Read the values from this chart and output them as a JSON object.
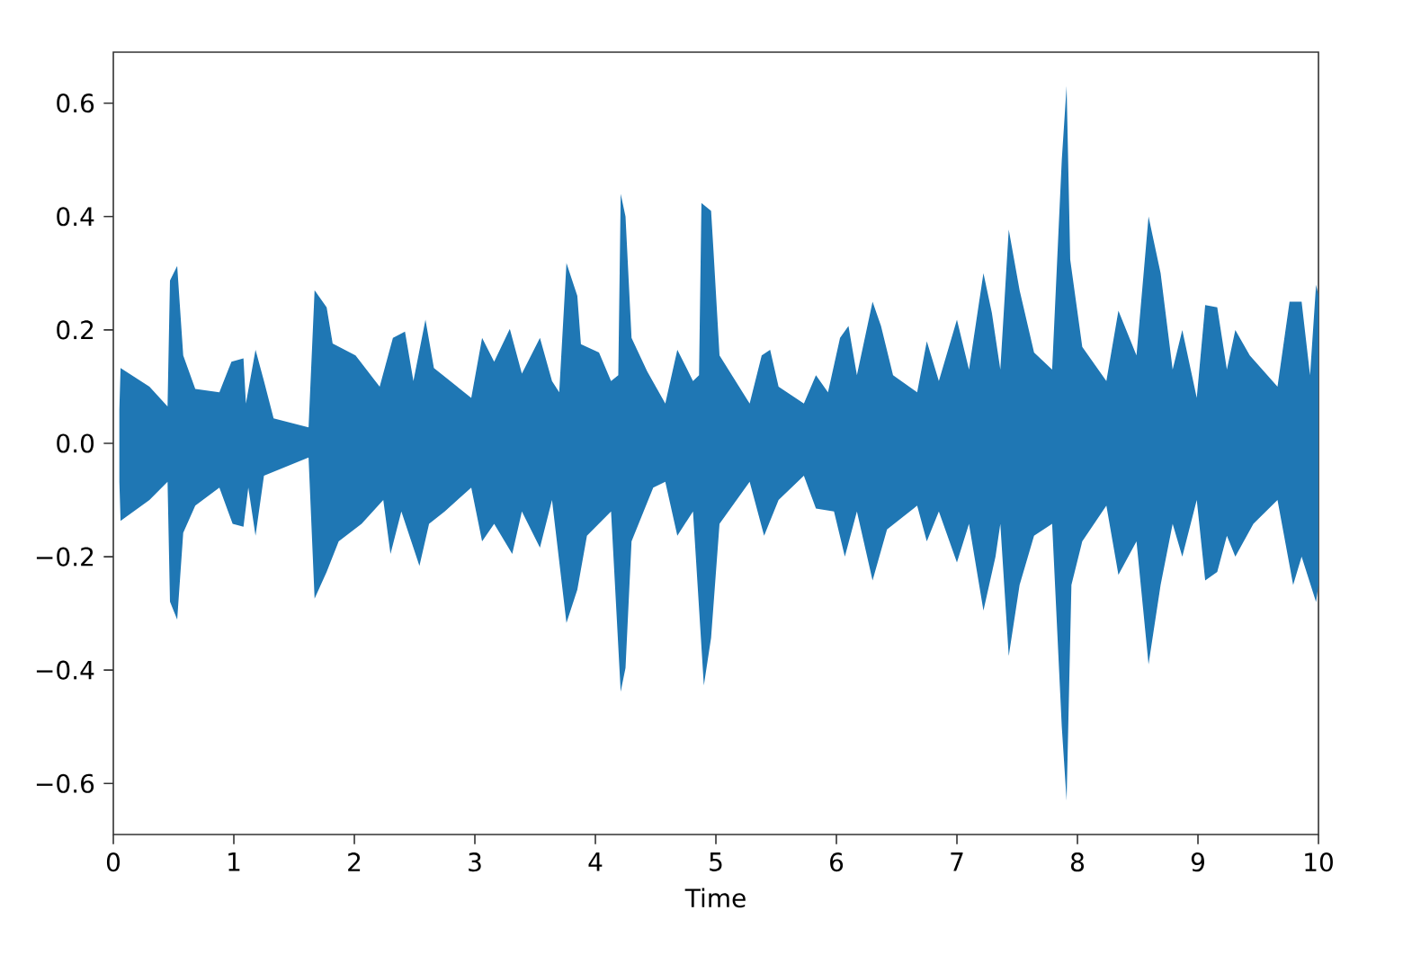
{
  "chart_data": {
    "type": "area",
    "xlabel": "Time",
    "xlim": [
      0,
      10
    ],
    "ylim": [
      -0.69,
      0.69
    ],
    "xticks": [
      0,
      1,
      2,
      3,
      4,
      5,
      6,
      7,
      8,
      9,
      10
    ],
    "yticks": [
      {
        "value": -0.6,
        "label": "−0.6"
      },
      {
        "value": -0.4,
        "label": "−0.4"
      },
      {
        "value": -0.2,
        "label": "−0.2"
      },
      {
        "value": 0,
        "label": "0.0"
      },
      {
        "value": 0.2,
        "label": "0.2"
      },
      {
        "value": 0.4,
        "label": "0.4"
      },
      {
        "value": 0.6,
        "label": "0.6"
      }
    ],
    "series": [
      {
        "color": "#1f77b4",
        "x": [
          0.05,
          0.06,
          0.3,
          0.45,
          0.47,
          0.53,
          0.58,
          0.68,
          0.88,
          0.98,
          1.08,
          1.1,
          1.18,
          1.25,
          1.33,
          1.62,
          1.67,
          1.77,
          1.82,
          2.01,
          2.21,
          2.32,
          2.42,
          2.49,
          2.59,
          2.66,
          2.97,
          3.06,
          3.16,
          3.29,
          3.39,
          3.54,
          3.64,
          3.7,
          3.76,
          3.85,
          3.88,
          4.03,
          4.13,
          4.19,
          4.21,
          4.25,
          4.3,
          4.43,
          4.58,
          4.68,
          4.81,
          4.86,
          4.88,
          4.96,
          4.98,
          5.03,
          5.28,
          5.38,
          5.45,
          5.52,
          5.73,
          5.83,
          5.93,
          6.03,
          6.1,
          6.17,
          6.3,
          6.37,
          6.47,
          6.67,
          6.75,
          6.85,
          7.0,
          7.1,
          7.22,
          7.29,
          7.36,
          7.43,
          7.52,
          7.64,
          7.79,
          7.87,
          7.91,
          7.94,
          8.04,
          8.24,
          8.34,
          8.49,
          8.59,
          8.69,
          8.79,
          8.87,
          8.99,
          9.06,
          9.16,
          9.24,
          9.31,
          9.43,
          9.66,
          9.76,
          9.86,
          9.93,
          9.98,
          10.0
        ],
        "values": [
          0.06,
          0.133,
          0.1,
          0.065,
          0.287,
          0.313,
          0.155,
          0.096,
          0.09,
          0.144,
          0.15,
          0.07,
          0.165,
          0.11,
          0.044,
          0.028,
          0.27,
          0.24,
          0.176,
          0.155,
          0.1,
          0.186,
          0.197,
          0.11,
          0.218,
          0.133,
          0.08,
          0.186,
          0.144,
          0.202,
          0.123,
          0.186,
          0.11,
          0.09,
          0.318,
          0.26,
          0.175,
          0.16,
          0.11,
          0.12,
          0.44,
          0.4,
          0.186,
          0.127,
          0.07,
          0.165,
          0.11,
          0.12,
          0.424,
          0.41,
          0.34,
          0.155,
          0.07,
          0.155,
          0.165,
          0.1,
          0.07,
          0.12,
          0.09,
          0.186,
          0.207,
          0.12,
          0.25,
          0.207,
          0.12,
          0.09,
          0.18,
          0.11,
          0.218,
          0.13,
          0.3,
          0.23,
          0.13,
          0.377,
          0.27,
          0.16,
          0.13,
          0.5,
          0.63,
          0.324,
          0.17,
          0.11,
          0.234,
          0.155,
          0.4,
          0.3,
          0.13,
          0.2,
          0.08,
          0.244,
          0.24,
          0.13,
          0.2,
          0.155,
          0.1,
          0.25,
          0.25,
          0.12,
          0.28,
          0.26
        ]
      },
      {
        "color": "#1f77b4",
        "x": [
          0.05,
          0.06,
          0.3,
          0.45,
          0.47,
          0.53,
          0.58,
          0.68,
          0.88,
          0.99,
          1.08,
          1.12,
          1.18,
          1.25,
          1.62,
          1.67,
          1.77,
          1.87,
          2.06,
          2.24,
          2.3,
          2.39,
          2.54,
          2.62,
          2.75,
          2.97,
          3.06,
          3.16,
          3.31,
          3.39,
          3.54,
          3.64,
          3.76,
          3.85,
          3.93,
          4.13,
          4.21,
          4.25,
          4.3,
          4.48,
          4.58,
          4.68,
          4.81,
          4.9,
          4.96,
          5.03,
          5.28,
          5.4,
          5.52,
          5.73,
          5.83,
          5.98,
          6.07,
          6.17,
          6.3,
          6.42,
          6.67,
          6.75,
          6.85,
          7.0,
          7.1,
          7.22,
          7.32,
          7.36,
          7.43,
          7.52,
          7.64,
          7.79,
          7.87,
          7.91,
          7.95,
          8.04,
          8.24,
          8.34,
          8.49,
          8.59,
          8.69,
          8.79,
          8.87,
          8.99,
          9.06,
          9.16,
          9.24,
          9.31,
          9.46,
          9.66,
          9.79,
          9.86,
          9.98,
          10.0
        ],
        "values": [
          -0.068,
          -0.137,
          -0.1,
          -0.068,
          -0.279,
          -0.311,
          -0.158,
          -0.11,
          -0.078,
          -0.142,
          -0.147,
          -0.078,
          -0.163,
          -0.057,
          -0.025,
          -0.274,
          -0.227,
          -0.173,
          -0.142,
          -0.1,
          -0.195,
          -0.12,
          -0.216,
          -0.142,
          -0.12,
          -0.078,
          -0.173,
          -0.142,
          -0.195,
          -0.12,
          -0.184,
          -0.1,
          -0.317,
          -0.258,
          -0.163,
          -0.12,
          -0.438,
          -0.396,
          -0.173,
          -0.078,
          -0.068,
          -0.163,
          -0.12,
          -0.427,
          -0.343,
          -0.142,
          -0.068,
          -0.163,
          -0.1,
          -0.057,
          -0.115,
          -0.12,
          -0.2,
          -0.12,
          -0.242,
          -0.152,
          -0.11,
          -0.173,
          -0.12,
          -0.21,
          -0.142,
          -0.295,
          -0.2,
          -0.142,
          -0.375,
          -0.25,
          -0.163,
          -0.142,
          -0.5,
          -0.63,
          -0.25,
          -0.173,
          -0.11,
          -0.232,
          -0.173,
          -0.39,
          -0.25,
          -0.142,
          -0.2,
          -0.1,
          -0.242,
          -0.227,
          -0.163,
          -0.2,
          -0.142,
          -0.1,
          -0.25,
          -0.2,
          -0.28,
          -0.25
        ]
      }
    ]
  }
}
